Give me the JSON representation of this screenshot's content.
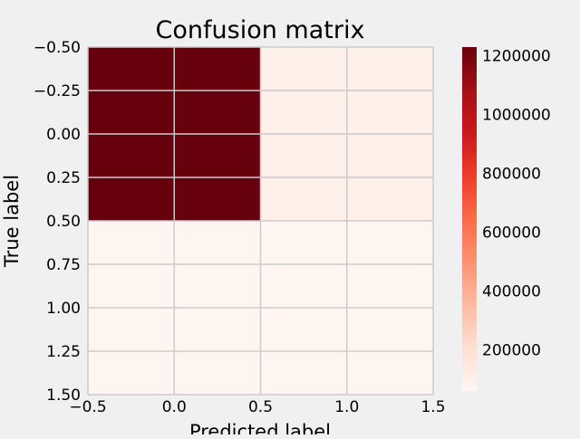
{
  "chart_data": {
    "type": "heatmap",
    "title": "Confusion matrix",
    "xlabel": "Predicted label",
    "ylabel": "True label",
    "matrix": [
      [
        1230000,
        95000
      ],
      [
        62000,
        60000
      ]
    ],
    "xlim": [
      -0.5,
      1.5
    ],
    "ylim": [
      1.5,
      -0.5
    ],
    "y_inverted": true,
    "xticks": [
      "−0.5",
      "0.0",
      "0.5",
      "1.0",
      "1.5"
    ],
    "yticks": [
      "−0.50",
      "−0.25",
      "0.00",
      "0.25",
      "0.50",
      "0.75",
      "1.00",
      "1.25",
      "1.50"
    ],
    "colormap": "Reds",
    "colorbar": {
      "min": 60000,
      "max": 1230000,
      "ticks": [
        "200000",
        "400000",
        "600000",
        "800000",
        "1000000",
        "1200000"
      ]
    },
    "grid": true,
    "background_color": "#f0f0f0",
    "grid_color": "#cbcbcb"
  }
}
